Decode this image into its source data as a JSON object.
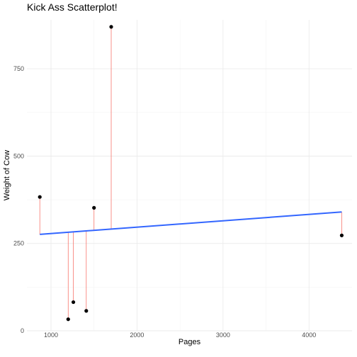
{
  "chart_data": {
    "type": "scatter",
    "title": "Kick Ass Scatterplot!",
    "xlabel": "Pages",
    "ylabel": "Weight of Cow",
    "xlim": [
      720,
      4500
    ],
    "ylim": [
      0,
      890
    ],
    "x_ticks": [
      1000,
      2000,
      3000,
      4000
    ],
    "x_tick_labels": [
      "1000",
      "2000",
      "3000",
      "4000"
    ],
    "y_ticks": [
      0,
      250,
      500,
      750
    ],
    "y_tick_labels": [
      "0",
      "250",
      "500",
      "750"
    ],
    "x_minor_ticks": [
      1500,
      2500,
      3500
    ],
    "y_minor_ticks": [
      125,
      375,
      625
    ],
    "grid": true,
    "points": [
      {
        "x": 870,
        "y": 383
      },
      {
        "x": 1200,
        "y": 33
      },
      {
        "x": 1260,
        "y": 82
      },
      {
        "x": 1410,
        "y": 57
      },
      {
        "x": 1500,
        "y": 352
      },
      {
        "x": 1700,
        "y": 870
      },
      {
        "x": 4380,
        "y": 273
      }
    ],
    "fit_line": {
      "x": [
        870,
        4380
      ],
      "y": [
        276,
        340
      ]
    },
    "colors": {
      "points": "#000000",
      "fit_line": "#3366ff",
      "residuals": "#f8766d",
      "grid": "#ebebeb"
    }
  }
}
